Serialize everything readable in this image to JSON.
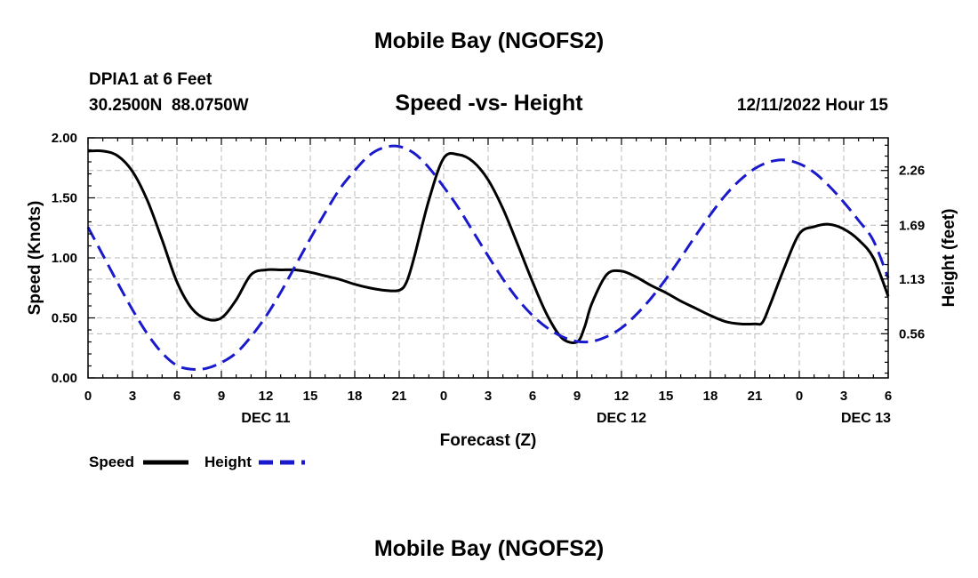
{
  "header": {
    "main_title": "Mobile Bay (NGOFS2)",
    "station": "DPIA1 at 6 Feet",
    "coords": "30.2500N  88.0750W",
    "chart_title": "Speed -vs- Height",
    "forecast_time": "12/11/2022 Hour 15"
  },
  "footer": {
    "repeat_title": "Mobile Bay (NGOFS2)"
  },
  "legend": {
    "speed_label": "Speed",
    "height_label": "Height"
  },
  "chart_data": {
    "type": "line",
    "title": "Speed -vs- Height",
    "xlabel": "Forecast (Z)",
    "ylabel": "Speed (Knots)",
    "y2label": "Height (feet)",
    "x_unit": "hours since DEC 11 00Z",
    "xlim": [
      0,
      54
    ],
    "ylim": [
      0,
      2
    ],
    "y2lim": [
      0.1,
      2.6
    ],
    "x_ticks": [
      0,
      3,
      6,
      9,
      12,
      15,
      18,
      21,
      24,
      27,
      30,
      33,
      36,
      39,
      42,
      45,
      48,
      51,
      54
    ],
    "x_tick_labels": [
      "0",
      "3",
      "6",
      "9",
      "12",
      "15",
      "18",
      "21",
      "0",
      "3",
      "6",
      "9",
      "12",
      "15",
      "18",
      "21",
      "0",
      "3",
      "6"
    ],
    "date_labels": [
      {
        "x": 12,
        "label": "DEC 11"
      },
      {
        "x": 36,
        "label": "DEC 12"
      },
      {
        "x": 52.5,
        "label": "DEC 13"
      }
    ],
    "y_ticks": [
      0,
      0.5,
      1.0,
      1.5,
      2.0
    ],
    "y_tick_labels": [
      "0.00",
      "0.50",
      "1.00",
      "1.50",
      "2.00"
    ],
    "y2_ticks": [
      0.56,
      1.13,
      1.69,
      2.26
    ],
    "y2_tick_labels": [
      "0.56",
      "1.13",
      "1.69",
      "2.26"
    ],
    "grid": true,
    "colors": {
      "speed": "#000000",
      "height": "#1a1acc",
      "grid": "#b8b8b8"
    },
    "series": [
      {
        "name": "Speed",
        "axis": "left",
        "style": "solid",
        "x": [
          0,
          1,
          2,
          3,
          4,
          5,
          6,
          7,
          8,
          9,
          10,
          11,
          12,
          13,
          14,
          15,
          16,
          17,
          18,
          19,
          20,
          21,
          21.5,
          22,
          23,
          24,
          25,
          26,
          27,
          28,
          29,
          30,
          31,
          32,
          33,
          33.5,
          34,
          35,
          36,
          37,
          38,
          39,
          40,
          41,
          42,
          43,
          44,
          45,
          45.5,
          46,
          47,
          48,
          49,
          50,
          51,
          52,
          53,
          54
        ],
        "y": [
          1.89,
          1.89,
          1.85,
          1.72,
          1.48,
          1.15,
          0.8,
          0.58,
          0.49,
          0.5,
          0.65,
          0.86,
          0.9,
          0.9,
          0.9,
          0.88,
          0.85,
          0.82,
          0.78,
          0.75,
          0.73,
          0.73,
          0.8,
          1.0,
          1.48,
          1.83,
          1.86,
          1.8,
          1.65,
          1.41,
          1.11,
          0.8,
          0.52,
          0.33,
          0.3,
          0.42,
          0.62,
          0.86,
          0.89,
          0.84,
          0.77,
          0.71,
          0.64,
          0.58,
          0.52,
          0.47,
          0.45,
          0.45,
          0.46,
          0.6,
          0.92,
          1.2,
          1.26,
          1.28,
          1.24,
          1.15,
          1.0,
          0.68
        ]
      },
      {
        "name": "Height",
        "axis": "right",
        "style": "dashed",
        "x": [
          0,
          1,
          2,
          3,
          4,
          5,
          6,
          7,
          8,
          9,
          10,
          11,
          12,
          13,
          14,
          15,
          16,
          17,
          18,
          19,
          20,
          21,
          22,
          23,
          24,
          25,
          26,
          27,
          28,
          29,
          30,
          31,
          32,
          33,
          34,
          35,
          36,
          37,
          38,
          39,
          40,
          41,
          42,
          43,
          44,
          45,
          46,
          47,
          48,
          49,
          50,
          51,
          52,
          53,
          54
        ],
        "y": [
          1.67,
          1.38,
          1.09,
          0.81,
          0.56,
          0.36,
          0.23,
          0.19,
          0.2,
          0.26,
          0.36,
          0.53,
          0.74,
          0.99,
          1.27,
          1.55,
          1.82,
          2.07,
          2.26,
          2.42,
          2.5,
          2.51,
          2.44,
          2.29,
          2.09,
          1.87,
          1.62,
          1.37,
          1.13,
          0.92,
          0.75,
          0.62,
          0.53,
          0.48,
          0.48,
          0.53,
          0.62,
          0.76,
          0.93,
          1.13,
          1.35,
          1.58,
          1.8,
          2.0,
          2.16,
          2.28,
          2.35,
          2.37,
          2.33,
          2.24,
          2.1,
          1.93,
          1.74,
          1.53,
          1.14
        ]
      }
    ]
  }
}
